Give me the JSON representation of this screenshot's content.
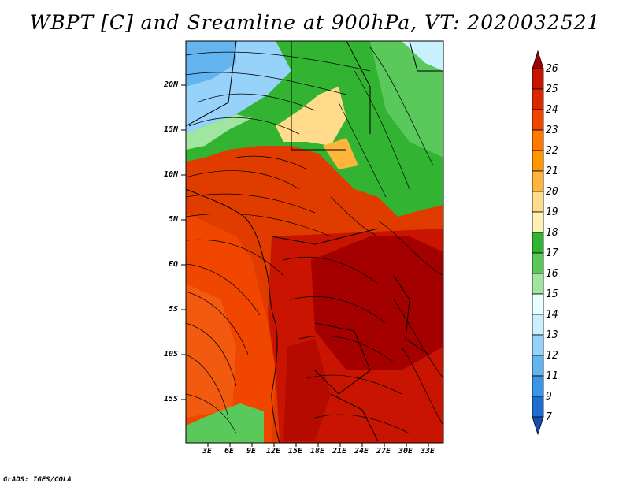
{
  "title": "WBPT [C] and Sreamline at 900hPa, VT: 2020032521",
  "credit": "GrADS: IGES/COLA",
  "lat_labels": [
    "20N",
    "15N",
    "10N",
    "5N",
    "EQ",
    "5S",
    "10S",
    "15S"
  ],
  "lon_labels": [
    "3E",
    "6E",
    "9E",
    "12E",
    "15E",
    "18E",
    "21E",
    "24E",
    "27E",
    "30E",
    "33E"
  ],
  "colorbar": {
    "labels": [
      "26",
      "25",
      "24",
      "23",
      "22",
      "21",
      "20",
      "19",
      "18",
      "17",
      "16",
      "15",
      "14",
      "13",
      "12",
      "11",
      "9",
      "7"
    ],
    "colors": [
      "#a50000",
      "#c81400",
      "#dc2800",
      "#f04600",
      "#ff7800",
      "#ff9600",
      "#ffb43c",
      "#ffdc8c",
      "#fff0b4",
      "#32b432",
      "#5ac85a",
      "#a0e6a0",
      "#e6ffff",
      "#c8f0ff",
      "#96d2fa",
      "#64b4f0",
      "#3c96e6",
      "#1e6ed2",
      "#1450b4"
    ]
  }
}
